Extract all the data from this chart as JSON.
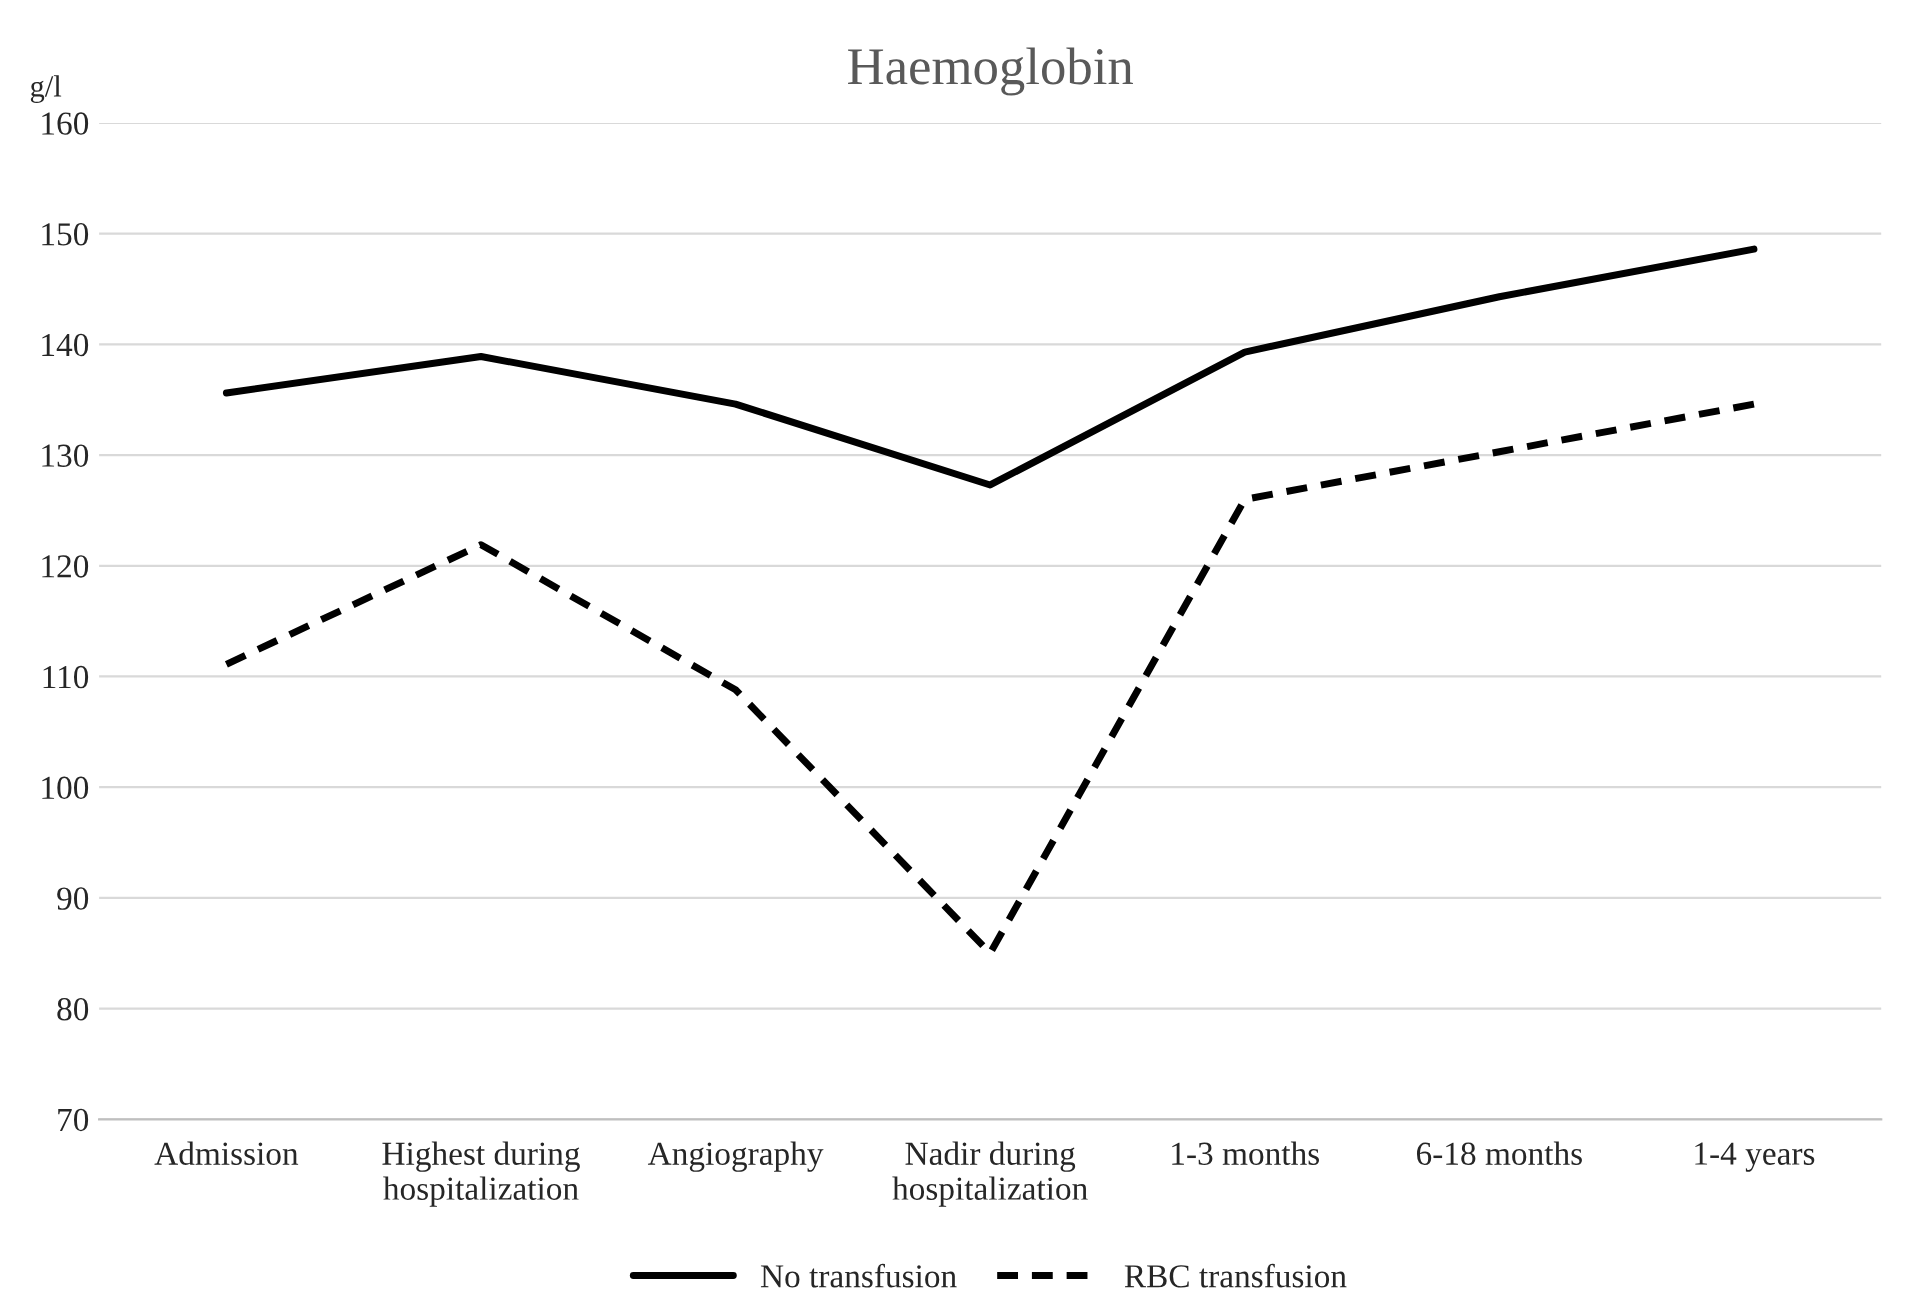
{
  "chart_data": {
    "type": "line",
    "title": "Haemoglobin",
    "ylabel": "g/l",
    "categories": [
      "Admission",
      "Highest during\nhospitalization",
      "Angiography",
      "Nadir during\nhospitalization",
      "1-3 months",
      "6-18 months",
      "1-4 years"
    ],
    "series": [
      {
        "name": "No transfusion",
        "color": "#000000",
        "line_style": "solid",
        "values": [
          135.6,
          138.9,
          134.6,
          127.3,
          139.3,
          144.3,
          148.6
        ]
      },
      {
        "name": "RBC transfusion",
        "color": "#000000",
        "line_style": "dashed",
        "values": [
          111.1,
          121.9,
          108.8,
          85.0,
          126.0,
          130.3,
          134.6
        ]
      }
    ],
    "ylim": [
      70,
      160
    ],
    "yticks": [
      70,
      80,
      90,
      100,
      110,
      120,
      130,
      140,
      150,
      160
    ],
    "grid": "y",
    "legend": "bottom",
    "marker": "none"
  }
}
